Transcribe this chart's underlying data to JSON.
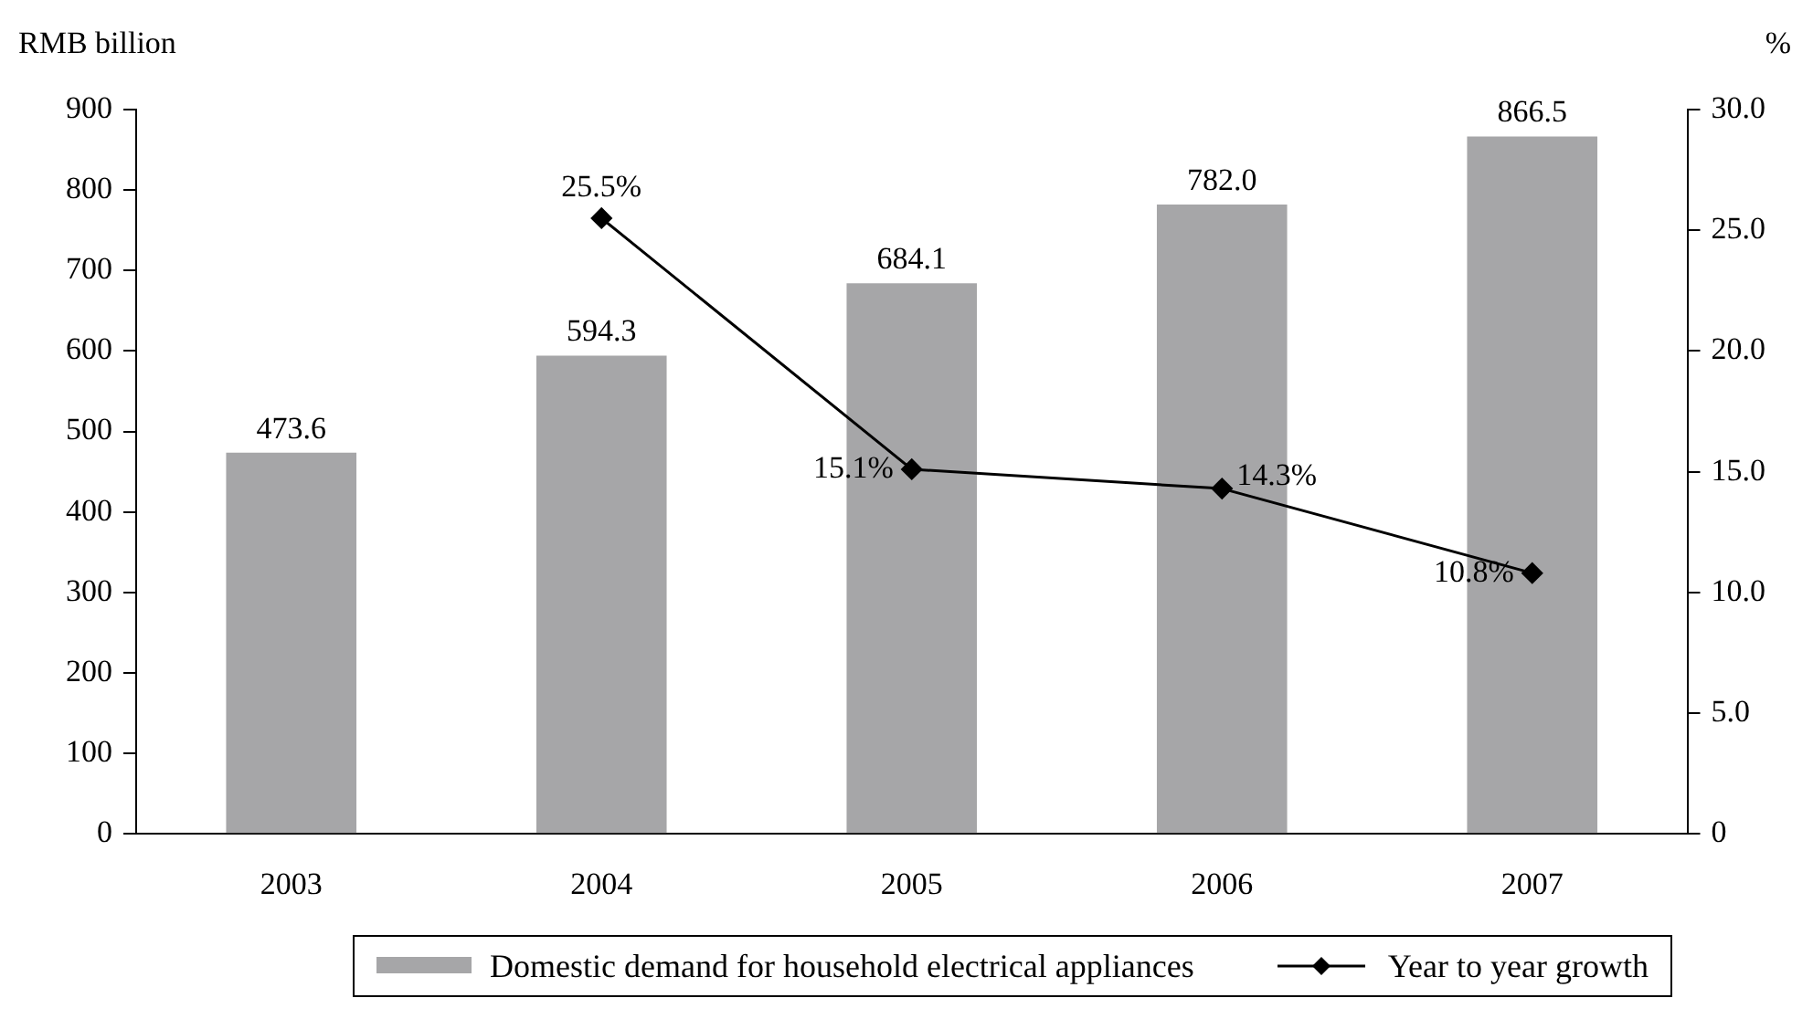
{
  "chart_data": {
    "type": "bar",
    "ylabel": "RMB billion",
    "y2label": "%",
    "categories": [
      "2003",
      "2004",
      "2005",
      "2006",
      "2007"
    ],
    "series": [
      {
        "name": "Domestic demand for household electrical appliances",
        "color": "#a6a6a8",
        "values": [
          473.6,
          594.3,
          684.1,
          782.0,
          866.5
        ],
        "value_labels": [
          "473.6",
          "594.3",
          "684.1",
          "782.0",
          "866.5"
        ]
      },
      {
        "name": "Year to year growth",
        "type": "line",
        "axis": "y2",
        "color": "#000000",
        "marker": "diamond",
        "values": [
          null,
          25.5,
          15.1,
          14.3,
          10.8
        ],
        "value_labels": [
          null,
          "25.5%",
          "15.1%",
          "14.3%",
          "10.8%"
        ]
      }
    ],
    "ylim": [
      0,
      900
    ],
    "yticks": [
      0,
      100,
      200,
      300,
      400,
      500,
      600,
      700,
      800,
      900
    ],
    "y2lim": [
      0,
      30
    ],
    "y2ticks": [
      0,
      {
        "value": 5,
        "label": "5.0"
      },
      {
        "value": 10,
        "label": "10.0"
      },
      {
        "value": 15,
        "label": "15.0"
      },
      {
        "value": 20,
        "label": "20.0"
      },
      {
        "value": 25,
        "label": "25.0"
      },
      {
        "value": 30,
        "label": "30.0"
      }
    ],
    "grid": false,
    "legend": "bottom"
  }
}
